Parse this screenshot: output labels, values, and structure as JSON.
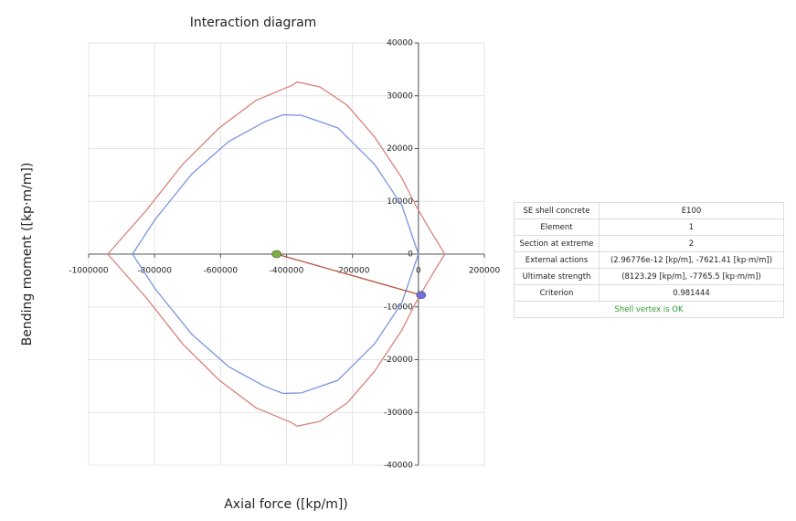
{
  "chart_data": {
    "type": "line",
    "title": "Interaction diagram",
    "x_label": "Axial force ([kp/m])",
    "y_label": "Bending moment ([kp·m/m])",
    "xlim": [
      -1000000,
      200000
    ],
    "xticks": [
      -1000000,
      -800000,
      -600000,
      -400000,
      -200000,
      0,
      200000
    ],
    "ylim": [
      -40000,
      40000
    ],
    "yticks": [
      -40000,
      -30000,
      -20000,
      -10000,
      0,
      10000,
      20000,
      30000,
      40000
    ],
    "grid": true,
    "series": [
      {
        "color": "#d9827c",
        "x": [
          -942000,
          -825000,
          -715000,
          -604000,
          -493000,
          -382000,
          -368000,
          -299000,
          -216000,
          -133000,
          -50000,
          -8000,
          33000,
          80000,
          33000,
          -8000,
          -50000,
          -133000,
          -216000,
          -299000,
          -368000,
          -382000,
          -493000,
          -604000,
          -715000,
          -825000,
          -942000
        ],
        "values": [
          0,
          8300,
          17000,
          23900,
          29100,
          32000,
          32600,
          31700,
          28200,
          22200,
          14400,
          9200,
          4800,
          0,
          -4800,
          -9200,
          -14400,
          -22200,
          -28200,
          -31700,
          -32600,
          -32000,
          -29100,
          -23900,
          -17000,
          -8300,
          0
        ]
      },
      {
        "color": "#7a95e0",
        "x": [
          -867000,
          -798000,
          -687000,
          -576000,
          -465000,
          -410000,
          -355000,
          -244000,
          -133000,
          -50000,
          0,
          -50000,
          -133000,
          -244000,
          -355000,
          -410000,
          -465000,
          -576000,
          -687000,
          -798000,
          -867000
        ],
        "values": [
          0,
          6600,
          15200,
          21300,
          25100,
          26400,
          26300,
          23900,
          17000,
          9200,
          0,
          -9200,
          -17000,
          -23900,
          -26300,
          -26400,
          -25100,
          -21300,
          -15200,
          -6600,
          0
        ]
      },
      {
        "color": "#b5503a",
        "x": [
          -430000,
          8123.29
        ],
        "values": [
          0,
          -7765.5
        ]
      },
      {
        "color": "#7fb23d",
        "marker": true,
        "x": [
          -430000
        ],
        "values": [
          0
        ]
      },
      {
        "color": "#6f6fe6",
        "marker": true,
        "x": [
          8123.29
        ],
        "values": [
          -7765.5
        ]
      }
    ]
  },
  "table": {
    "rows": [
      [
        "SE shell concrete",
        "E100"
      ],
      [
        "Element",
        "1"
      ],
      [
        "Section at extreme",
        "2"
      ],
      [
        "External actions",
        "(2.96776e-12 [kp/m], -7621.41 [kp·m/m])"
      ],
      [
        "Ultimate strength",
        "(8123.29 [kp/m], -7765.5 [kp·m/m])"
      ],
      [
        "Criterion",
        "0.981444"
      ]
    ],
    "footer": "Shell vertex is OK"
  }
}
